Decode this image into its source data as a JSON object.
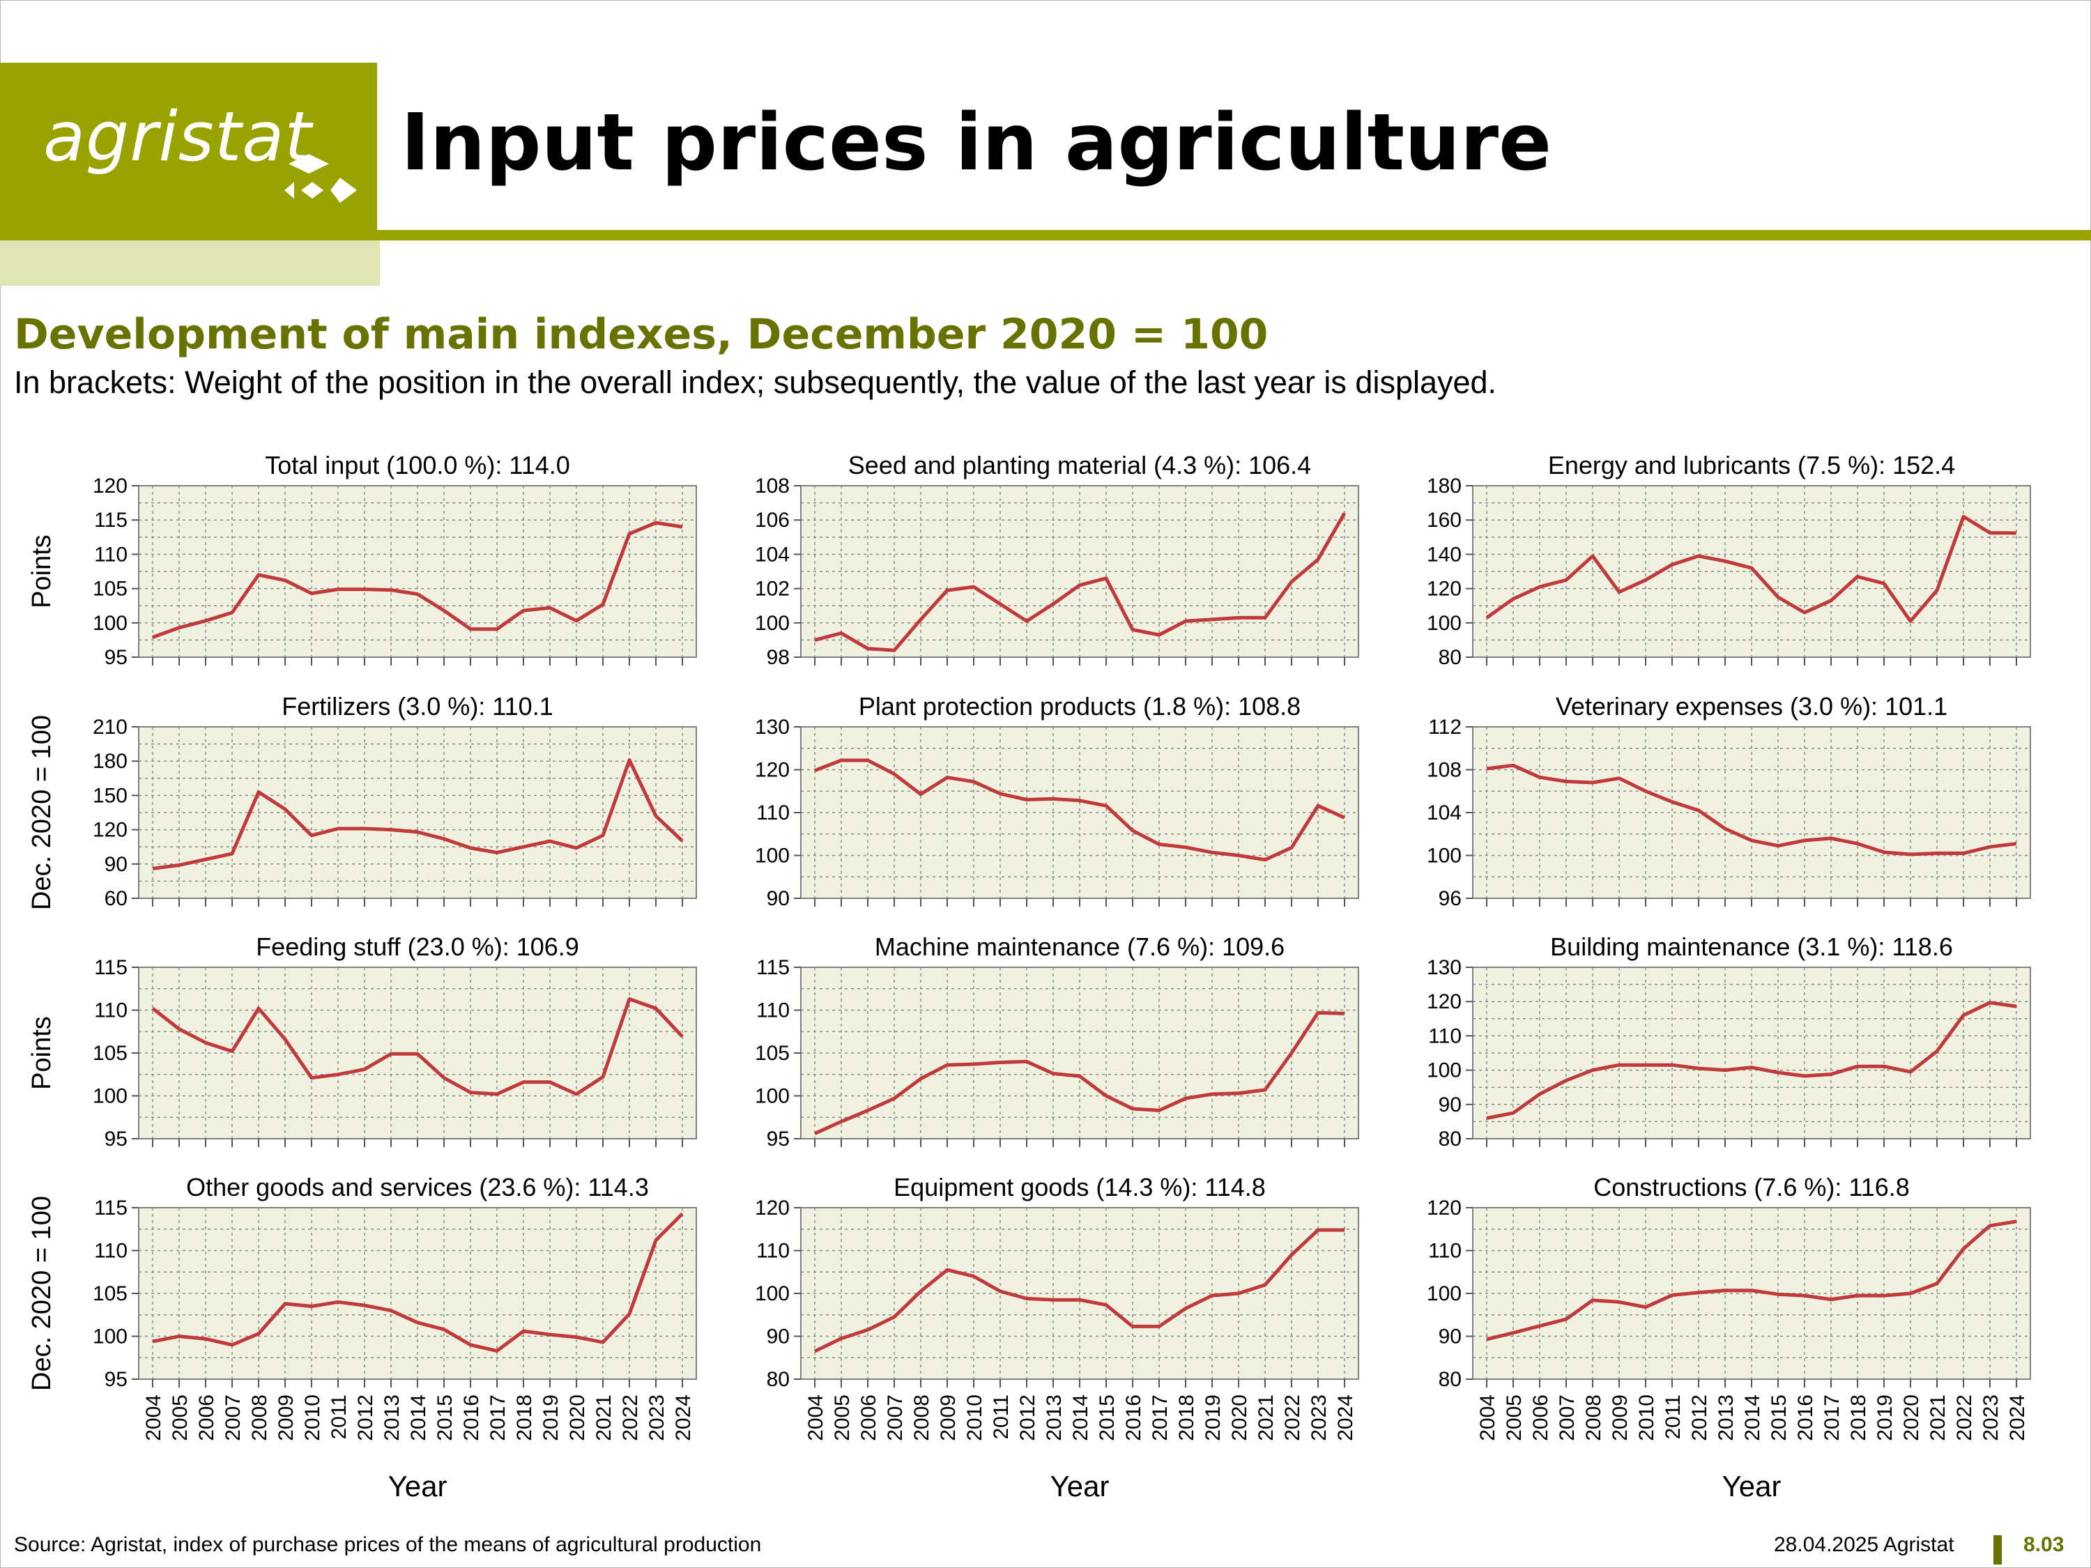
{
  "header": {
    "logo_text": "agristat",
    "title": "Input prices in agriculture",
    "subtitle": "Development of main indexes, December 2020 = 100",
    "note": "In brackets: Weight of the position in the overall index; subsequently, the value of the last year is displayed."
  },
  "footer": {
    "source": "Source: Agristat, index of purchase prices of the means of agricultural production",
    "date": "28.04.2025 Agristat",
    "page": "8.03"
  },
  "colors": {
    "brand": "#99a300",
    "brand_dark": "#687200",
    "brand_light": "#e0e3b3",
    "line": "#c0393b",
    "plot_bg": "#f1f1e1"
  },
  "chart_data": {
    "type": "line",
    "x": [
      "2004",
      "2005",
      "2006",
      "2007",
      "2008",
      "2009",
      "2010",
      "2011",
      "2012",
      "2013",
      "2014",
      "2015",
      "2016",
      "2017",
      "2018",
      "2019",
      "2020",
      "2021",
      "2022",
      "2023",
      "2024"
    ],
    "xlabel": "Year",
    "ylabels": [
      "Points",
      "Dec. 2020 = 100",
      "Points",
      "Dec. 2020 = 100"
    ],
    "grid": true,
    "panels": [
      {
        "title": "Total input (100.0 %): 114.0",
        "ylim": [
          95,
          120
        ],
        "yticks": [
          95,
          100,
          105,
          110,
          115,
          120
        ],
        "values": [
          97.9,
          99.3,
          100.3,
          101.5,
          107.0,
          106.2,
          104.3,
          104.9,
          104.9,
          104.8,
          104.2,
          101.8,
          99.1,
          99.1,
          101.8,
          102.2,
          100.3,
          102.7,
          113.0,
          114.6,
          114.0
        ]
      },
      {
        "title": "Seed and planting material (4.3 %): 106.4",
        "ylim": [
          98,
          108
        ],
        "yticks": [
          98,
          100,
          102,
          104,
          106,
          108
        ],
        "values": [
          99.0,
          99.4,
          98.5,
          98.4,
          100.2,
          101.9,
          102.1,
          101.1,
          100.1,
          101.1,
          102.2,
          102.6,
          99.6,
          99.3,
          100.1,
          100.2,
          100.3,
          100.3,
          102.4,
          103.7,
          106.4
        ]
      },
      {
        "title": "Energy and lubricants (7.5 %): 152.4",
        "ylim": [
          80,
          180
        ],
        "yticks": [
          80,
          100,
          120,
          140,
          160,
          180
        ],
        "values": [
          103,
          114,
          121,
          125,
          139,
          118,
          125,
          134,
          139,
          136,
          132,
          115,
          106,
          113,
          127,
          123,
          101,
          119,
          162,
          152.5,
          152.4
        ]
      },
      {
        "title": "Fertilizers (3.0 %): 110.1",
        "ylim": [
          60,
          210
        ],
        "yticks": [
          60,
          90,
          120,
          150,
          180,
          210
        ],
        "values": [
          86,
          89,
          94,
          99,
          153,
          138,
          115,
          121,
          121,
          120,
          118,
          112,
          104,
          100,
          105,
          110,
          104,
          115,
          181,
          132,
          110.1
        ]
      },
      {
        "title": "Plant protection products (1.8 %): 108.8",
        "ylim": [
          90,
          130
        ],
        "yticks": [
          90,
          100,
          110,
          120,
          130
        ],
        "values": [
          119.8,
          122.2,
          122.2,
          119.0,
          114.3,
          118.2,
          117.2,
          114.4,
          113.0,
          113.2,
          112.8,
          111.6,
          105.8,
          102.6,
          101.9,
          100.7,
          100.0,
          99.0,
          101.8,
          111.6,
          108.8
        ]
      },
      {
        "title": "Veterinary expenses (3.0 %): 101.1",
        "ylim": [
          96,
          112
        ],
        "yticks": [
          96,
          100,
          104,
          108,
          112
        ],
        "values": [
          108.1,
          108.4,
          107.3,
          106.9,
          106.8,
          107.2,
          106.0,
          105.0,
          104.2,
          102.5,
          101.4,
          100.9,
          101.4,
          101.6,
          101.1,
          100.3,
          100.1,
          100.2,
          100.2,
          100.8,
          101.1
        ]
      },
      {
        "title": "Feeding stuff (23.0 %): 106.9",
        "ylim": [
          95,
          115
        ],
        "yticks": [
          95,
          100,
          105,
          110,
          115
        ],
        "values": [
          110.2,
          107.8,
          106.2,
          105.2,
          110.2,
          106.6,
          102.1,
          102.5,
          103.1,
          104.9,
          104.9,
          102.1,
          100.4,
          100.2,
          101.6,
          101.6,
          100.2,
          102.2,
          111.3,
          110.2,
          106.9
        ]
      },
      {
        "title": "Machine maintenance (7.6 %): 109.6",
        "ylim": [
          95,
          115
        ],
        "yticks": [
          95,
          100,
          105,
          110,
          115
        ],
        "values": [
          95.6,
          97.0,
          98.3,
          99.7,
          102.0,
          103.6,
          103.7,
          103.9,
          104.0,
          102.6,
          102.3,
          100.0,
          98.5,
          98.3,
          99.7,
          100.2,
          100.3,
          100.7,
          105.0,
          109.7,
          109.6
        ]
      },
      {
        "title": "Building maintenance (3.1 %): 118.6",
        "ylim": [
          80,
          130
        ],
        "yticks": [
          80,
          90,
          100,
          110,
          120,
          130
        ],
        "values": [
          86,
          87.5,
          93,
          97,
          100,
          101.5,
          101.5,
          101.5,
          100.5,
          100,
          100.8,
          99.3,
          98.3,
          98.8,
          101.1,
          101.1,
          99.5,
          105.5,
          116,
          119.7,
          118.6
        ]
      },
      {
        "title": "Other goods and services (23.6 %): 114.3",
        "ylim": [
          95,
          115
        ],
        "yticks": [
          95,
          100,
          105,
          110,
          115
        ],
        "values": [
          99.4,
          100.0,
          99.7,
          99.0,
          100.3,
          103.8,
          103.5,
          104.0,
          103.6,
          103.0,
          101.6,
          100.8,
          99.0,
          98.3,
          100.6,
          100.2,
          99.9,
          99.3,
          102.6,
          111.2,
          114.3
        ]
      },
      {
        "title": "Equipment goods (14.3 %): 114.8",
        "ylim": [
          80,
          120
        ],
        "yticks": [
          80,
          90,
          100,
          110,
          120
        ],
        "values": [
          86.5,
          89.5,
          91.5,
          94.5,
          100.5,
          105.5,
          104,
          100.5,
          98.8,
          98.5,
          98.5,
          97.3,
          92.3,
          92.3,
          96.5,
          99.5,
          100,
          102,
          109,
          114.8,
          114.8
        ]
      },
      {
        "title": "Constructions (7.6 %): 116.8",
        "ylim": [
          80,
          120
        ],
        "yticks": [
          80,
          90,
          100,
          110,
          120
        ],
        "values": [
          89.3,
          90.8,
          92.4,
          94.0,
          98.4,
          98.0,
          96.8,
          99.6,
          100.2,
          100.7,
          100.7,
          99.8,
          99.5,
          98.6,
          99.5,
          99.5,
          100.0,
          102.3,
          110.4,
          115.8,
          116.8
        ]
      }
    ]
  }
}
